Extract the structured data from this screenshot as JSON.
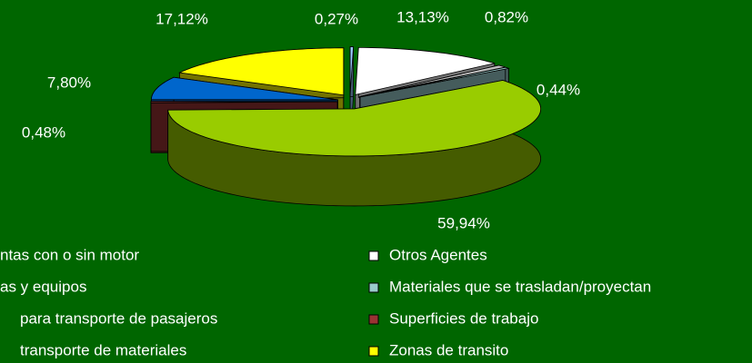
{
  "chart_data": {
    "type": "pie",
    "categories": [
      "ntas con o sin motor",
      "Otros Agentes",
      "as y equipos",
      "Materiales que se trasladan/proyectan",
      "para transporte de pasajeros",
      "Superficies de trabajo",
      "transporte de materiales",
      "Zonas de transito"
    ],
    "values": [
      0.27,
      13.13,
      0.82,
      0.44,
      59.94,
      0.48,
      7.8,
      17.12
    ],
    "value_labels": [
      "0,27%",
      "13,13%",
      "0,82%",
      "0,44%",
      "59,94%",
      "0,48%",
      "7,80%",
      "17,12%"
    ],
    "colors": [
      "#99ccff",
      "#ffffff",
      "#c0c0c0",
      "#99cccc",
      "#99cc00",
      "#993333",
      "#0066cc",
      "#ffff00"
    ]
  }
}
